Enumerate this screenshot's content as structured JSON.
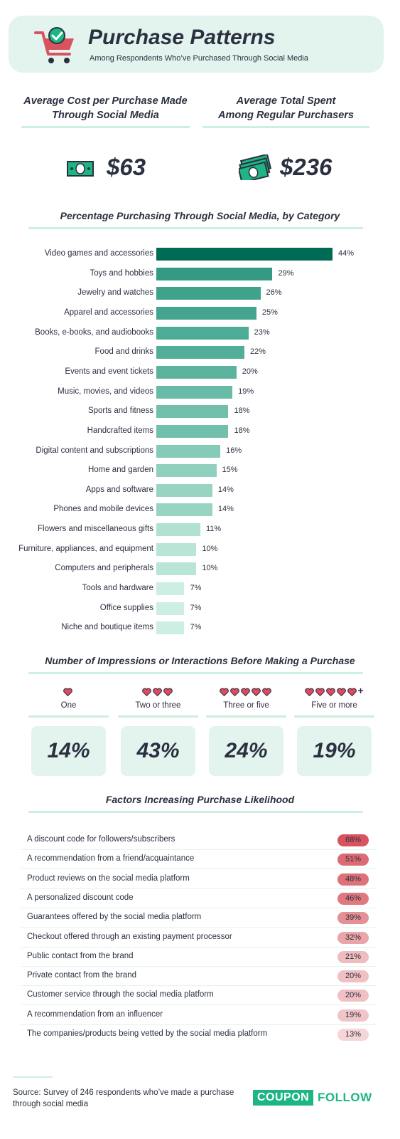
{
  "header": {
    "title": "Purchase Patterns",
    "subtitle": "Among Respondents Who’ve Purchased Through Social Media"
  },
  "stats": [
    {
      "label_line1": "Average Cost per Purchase Made",
      "label_line2": "Through Social Media",
      "value": "$63",
      "icon": "dollar-bill-icon"
    },
    {
      "label_line1": "Average Total Spent",
      "label_line2": "Among Regular Purchasers",
      "value": "$236",
      "icon": "money-stack-icon"
    }
  ],
  "chart_data": {
    "type": "bar",
    "title": "Percentage Purchasing Through Social Media, by Category",
    "orientation": "horizontal",
    "categories": [
      "Video games and accessories",
      "Toys and hobbies",
      "Jewelry and watches",
      "Apparel and accessories",
      "Books, e-books, and audiobooks",
      "Food and drinks",
      "Events and event tickets",
      "Music, movies, and videos",
      "Sports and fitness",
      "Handcrafted items",
      "Digital content and subscriptions",
      "Home and garden",
      "Apps and software",
      "Phones and mobile devices",
      "Flowers and miscellaneous gifts",
      "Furniture, appliances, and equipment",
      "Computers and peripherals",
      "Tools and hardware",
      "Office supplies",
      "Niche and boutique items"
    ],
    "values": [
      44,
      29,
      26,
      25,
      23,
      22,
      20,
      19,
      18,
      18,
      16,
      15,
      14,
      14,
      11,
      10,
      10,
      7,
      7,
      7
    ],
    "value_labels": [
      "44%",
      "29%",
      "26%",
      "25%",
      "23%",
      "22%",
      "20%",
      "19%",
      "18%",
      "18%",
      "16%",
      "15%",
      "14%",
      "14%",
      "11%",
      "10%",
      "10%",
      "7%",
      "7%",
      "7%"
    ],
    "colors": [
      "#006b54",
      "#359a84",
      "#3fa28b",
      "#43a58f",
      "#4eab95",
      "#52ae98",
      "#5bb39e",
      "#68bba6",
      "#72c0ac",
      "#72c0ac",
      "#86cab8",
      "#8ecfbd",
      "#97d4c2",
      "#97d4c2",
      "#b0e1d2",
      "#b8e5d6",
      "#b8e5d6",
      "#cdeee3",
      "#cdeee3",
      "#cdeee3"
    ]
  },
  "impressions": {
    "title": "Number of Impressions or Interactions Before Making a Purchase",
    "items": [
      {
        "label": "One",
        "hearts": 1,
        "plus": "",
        "value": "14%"
      },
      {
        "label": "Two or three",
        "hearts": 3,
        "plus": "",
        "value": "43%"
      },
      {
        "label": "Three or five",
        "hearts": 5,
        "plus": "",
        "value": "24%"
      },
      {
        "label": "Five or more",
        "hearts": 5,
        "plus": "+",
        "value": "19%"
      }
    ],
    "heart_color": "#e04a5f"
  },
  "factors": {
    "title": "Factors Increasing Purchase Likelihood",
    "items": [
      {
        "label": "A discount code for followers/subscribers",
        "value": "68%",
        "color": "#d9535f"
      },
      {
        "label": "A recommendation from a friend/acquaintance",
        "value": "51%",
        "color": "#dc6b73"
      },
      {
        "label": "Product reviews on the social media platform",
        "value": "48%",
        "color": "#de7279"
      },
      {
        "label": "A personalized discount code",
        "value": "46%",
        "color": "#e0797f"
      },
      {
        "label": "Guarantees offered by the social media platform",
        "value": "39%",
        "color": "#e69096"
      },
      {
        "label": "Checkout offered through an existing payment processor",
        "value": "32%",
        "color": "#eaa5a9"
      },
      {
        "label": "Public contact from the brand",
        "value": "21%",
        "color": "#efbcbf"
      },
      {
        "label": "Private contact from the brand",
        "value": "20%",
        "color": "#f0c0c3"
      },
      {
        "label": "Customer service through the social media platform",
        "value": "20%",
        "color": "#f0c0c3"
      },
      {
        "label": "A recommendation from an influencer",
        "value": "19%",
        "color": "#f1c4c7"
      },
      {
        "label": "The companies/products being vetted by the social media platform",
        "value": "13%",
        "color": "#f5d5d7"
      }
    ]
  },
  "footer": {
    "source_line1": "Source: Survey of 246 respondents who’ve made a purchase",
    "source_line2": "through social media",
    "brand_part1": "COUPON",
    "brand_part2": "FOLLOW",
    "brand_color": "#1db584"
  }
}
